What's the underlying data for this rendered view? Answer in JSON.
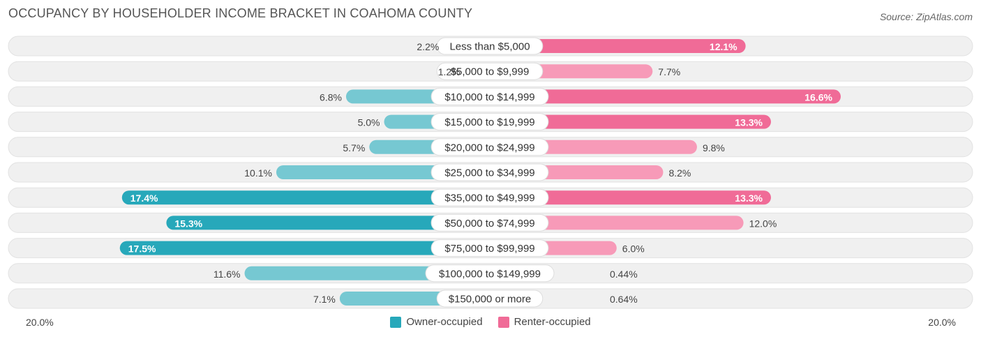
{
  "title": "OCCUPANCY BY HOUSEHOLDER INCOME BRACKET IN COAHOMA COUNTY",
  "source": "Source: ZipAtlas.com",
  "colors": {
    "owner_light": "#76c8d2",
    "owner_dark": "#27a8ba",
    "renter_light": "#f79ab8",
    "renter_dark": "#f06b97",
    "row_bg": "#f0f0f0"
  },
  "axis": {
    "left_label": "20.0%",
    "right_label": "20.0%"
  },
  "legend": {
    "owner_label": "Owner-occupied",
    "renter_label": "Renter-occupied"
  },
  "chart_data": {
    "type": "bar",
    "orientation": "horizontal-diverging",
    "title": "OCCUPANCY BY HOUSEHOLDER INCOME BRACKET IN COAHOMA COUNTY",
    "xlim": [
      -20,
      20
    ],
    "categories": [
      "Less than $5,000",
      "$5,000 to $9,999",
      "$10,000 to $14,999",
      "$15,000 to $19,999",
      "$20,000 to $24,999",
      "$25,000 to $34,999",
      "$35,000 to $49,999",
      "$50,000 to $74,999",
      "$75,000 to $99,999",
      "$100,000 to $149,999",
      "$150,000 or more"
    ],
    "series": [
      {
        "name": "Owner-occupied",
        "values": [
          2.2,
          1.2,
          6.8,
          5.0,
          5.7,
          10.1,
          17.4,
          15.3,
          17.5,
          11.6,
          7.1
        ],
        "labels": [
          "2.2%",
          "1.2%",
          "6.8%",
          "5.0%",
          "5.7%",
          "10.1%",
          "17.4%",
          "15.3%",
          "17.5%",
          "11.6%",
          "7.1%"
        ]
      },
      {
        "name": "Renter-occupied",
        "values": [
          12.1,
          7.7,
          16.6,
          13.3,
          9.8,
          8.2,
          13.3,
          12.0,
          6.0,
          0.44,
          0.64
        ],
        "labels": [
          "12.1%",
          "7.7%",
          "16.6%",
          "13.3%",
          "9.8%",
          "8.2%",
          "13.3%",
          "12.0%",
          "6.0%",
          "0.44%",
          "0.64%"
        ]
      }
    ],
    "legend_position": "bottom-center"
  }
}
